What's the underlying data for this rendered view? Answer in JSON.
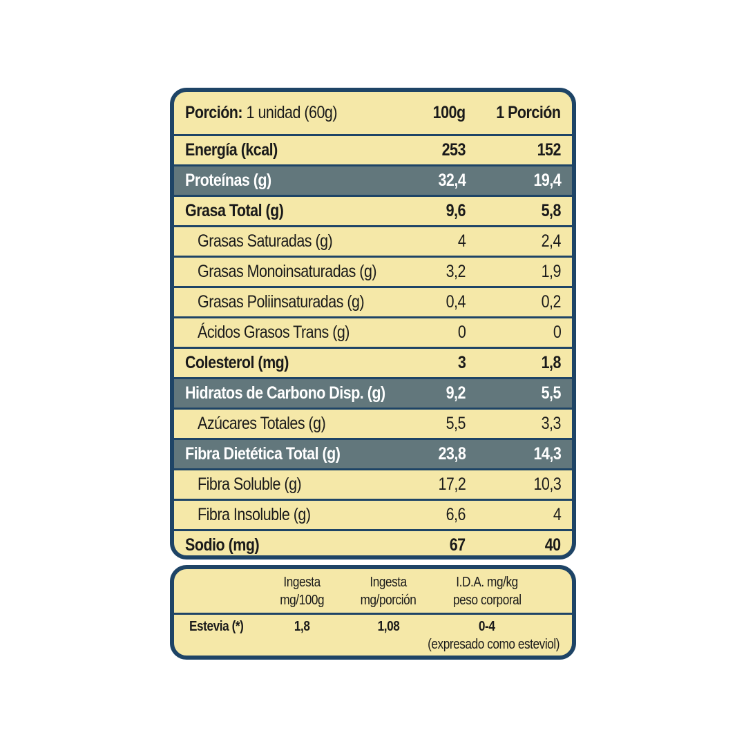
{
  "nutrition": {
    "header": {
      "portion_label": "Porción:",
      "portion_value": "1 unidad (60g)",
      "col_100g": "100g",
      "col_portion": "1 Porción"
    },
    "rows": [
      {
        "label": "Energía (kcal)",
        "v100": "253",
        "vpor": "152",
        "style": "bold"
      },
      {
        "label": "Proteínas (g)",
        "v100": "32,4",
        "vpor": "19,4",
        "style": "dark"
      },
      {
        "label": "Grasa Total (g)",
        "v100": "9,6",
        "vpor": "5,8",
        "style": "bold"
      },
      {
        "label": "Grasas Saturadas (g)",
        "v100": "4",
        "vpor": "2,4",
        "style": "sub"
      },
      {
        "label": "Grasas Monoinsaturadas (g)",
        "v100": "3,2",
        "vpor": "1,9",
        "style": "sub"
      },
      {
        "label": "Grasas Poliinsaturadas (g)",
        "v100": "0,4",
        "vpor": "0,2",
        "style": "sub"
      },
      {
        "label": "Ácidos Grasos Trans (g)",
        "v100": "0",
        "vpor": "0",
        "style": "sub"
      },
      {
        "label": "Colesterol (mg)",
        "v100": "3",
        "vpor": "1,8",
        "style": "bold"
      },
      {
        "label": "Hidratos de Carbono Disp. (g)",
        "v100": "9,2",
        "vpor": "5,5",
        "style": "dark"
      },
      {
        "label": "Azúcares Totales (g)",
        "v100": "5,5",
        "vpor": "3,3",
        "style": "sub"
      },
      {
        "label": "Fibra Dietética Total (g)",
        "v100": "23,8",
        "vpor": "14,3",
        "style": "dark"
      },
      {
        "label": "Fibra Soluble (g)",
        "v100": "17,2",
        "vpor": "10,3",
        "style": "sub"
      },
      {
        "label": "Fibra Insoluble (g)",
        "v100": "6,6",
        "vpor": "4",
        "style": "sub"
      },
      {
        "label": "Sodio (mg)",
        "v100": "67",
        "vpor": "40",
        "style": "bold"
      }
    ]
  },
  "stevia": {
    "col1_line1": "Ingesta",
    "col1_line2": "mg/100g",
    "col2_line1": "Ingesta",
    "col2_line2": "mg/porción",
    "col3_line1": "I.D.A. mg/kg",
    "col3_line2": "peso corporal",
    "row_label": "Estevia (*)",
    "val1": "1,8",
    "val2": "1,08",
    "val3": "0-4",
    "note": "(expresado como esteviol)"
  },
  "colors": {
    "border": "#1e4466",
    "background": "#f5e8a8",
    "highlight_row": "#62777c"
  }
}
